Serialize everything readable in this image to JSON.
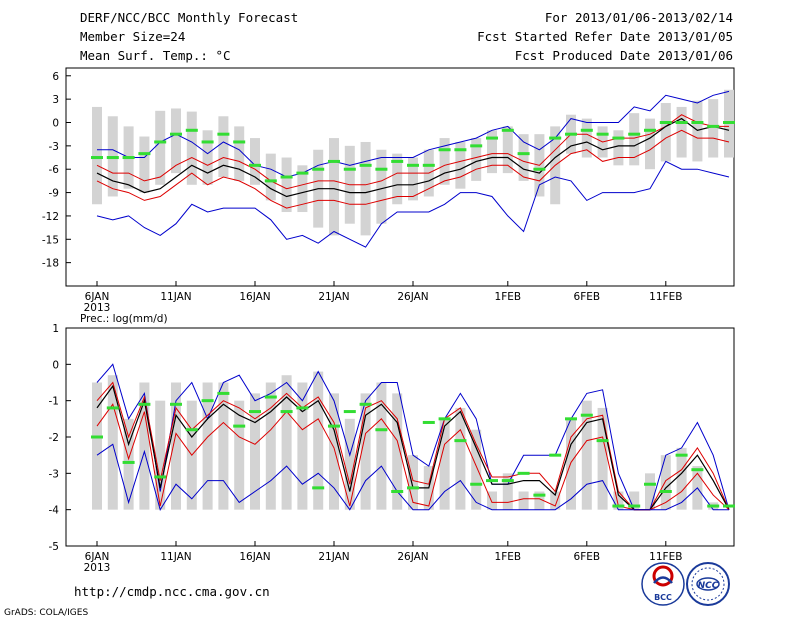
{
  "header": {
    "title": "DERF/NCC/BCC Monthly Forecast",
    "member": "Member Size=24",
    "variable": "Mean Surf. Temp.: °C",
    "period": "For 2013/01/06-2013/02/14",
    "started": "Fcst Started Refer Date 2013/01/05",
    "produced": "Fcst Produced Date 2013/01/06"
  },
  "footer": {
    "url": "http://cmdp.ncc.cma.gov.cn",
    "grads": "GrADS: COLA/IGES",
    "logo1_text": "BCC",
    "logo2_text": "NCC"
  },
  "colors": {
    "box": "#d3d3d3",
    "obs": "#33dd33",
    "ens_bound": "#0000cc",
    "pct": "#dd0000",
    "mean": "#000000"
  },
  "chart_data": [
    {
      "type": "line",
      "name": "temperature",
      "title": "Mean Surf. Temp.: °C",
      "ylim": [
        -21,
        7
      ],
      "yticks": [
        -18,
        -15,
        -12,
        -9,
        -6,
        -3,
        0,
        3,
        6
      ],
      "xtick_labels": [
        "6JAN\n2013",
        "11JAN",
        "16JAN",
        "21JAN",
        "26JAN",
        "1FEB",
        "6FEB",
        "11FEB"
      ],
      "xtick_days": [
        0,
        5,
        10,
        15,
        20,
        26,
        31,
        36
      ],
      "days": 40,
      "box_top": [
        2,
        0.8,
        -0.5,
        -1.8,
        1.5,
        1.8,
        1.4,
        -1,
        0.8,
        -0.5,
        -2,
        -4,
        -4.5,
        -5.5,
        -3.5,
        -2,
        -3,
        -2.5,
        -3.5,
        -4,
        -4.5,
        -3.5,
        -2,
        -2.5,
        -2,
        -1,
        -0.5,
        -1.5,
        -1.5,
        -0.5,
        1,
        0.5,
        -0.5,
        -1,
        1.2,
        0.5,
        2.5,
        2,
        2.8,
        3,
        4.2
      ],
      "box_bottom": [
        -10.5,
        -9.5,
        -8.5,
        -9,
        -8,
        -6.5,
        -8,
        -8,
        -7,
        -7.5,
        -8,
        -10,
        -11.5,
        -11.5,
        -13.5,
        -14.5,
        -13,
        -14.5,
        -13,
        -10.5,
        -10,
        -9.5,
        -8,
        -8.5,
        -7.5,
        -6.5,
        -6.5,
        -7.5,
        -9.5,
        -10.5,
        -4,
        -4.5,
        -4.5,
        -5.5,
        -5.5,
        -6,
        -5,
        -4.5,
        -5,
        -4.5,
        -4.5
      ],
      "series": [
        {
          "name": "ensemble_max",
          "color": "#0000cc",
          "values": [
            -3.5,
            -3.5,
            -4.5,
            -4.5,
            -2.5,
            -1.5,
            -2.5,
            -4,
            -2.5,
            -3.5,
            -5.5,
            -6,
            -7,
            -6.5,
            -5.5,
            -5,
            -5.5,
            -5,
            -4.5,
            -4.5,
            -4.5,
            -3.5,
            -3,
            -2.5,
            -2,
            -1,
            -0.5,
            -2.5,
            -3.5,
            -2,
            0.5,
            0,
            0,
            0,
            2,
            1.5,
            3.5,
            3,
            2.5,
            3.5,
            4
          ]
        },
        {
          "name": "pct_upper",
          "color": "#dd0000",
          "values": [
            -5.5,
            -6.5,
            -6.5,
            -7.5,
            -7,
            -5.5,
            -4.5,
            -5.5,
            -4.5,
            -5,
            -6,
            -7.5,
            -8.5,
            -8,
            -7.5,
            -7.5,
            -8,
            -8,
            -7.5,
            -6.5,
            -6.5,
            -6.5,
            -5.5,
            -5,
            -4.5,
            -4,
            -4,
            -5,
            -5.5,
            -3.5,
            -1.5,
            -1.5,
            -2.5,
            -2,
            -2,
            -1.5,
            -0.5,
            1,
            0,
            -0.5,
            -0.5
          ]
        },
        {
          "name": "mean",
          "color": "#000000",
          "values": [
            -6.5,
            -7.5,
            -8,
            -9,
            -8.5,
            -7,
            -5.5,
            -6.5,
            -5.5,
            -6,
            -7,
            -8.5,
            -9.5,
            -9,
            -8.5,
            -8.5,
            -9,
            -9,
            -8.5,
            -8,
            -8,
            -7.5,
            -6.5,
            -6,
            -5,
            -4.5,
            -4.5,
            -6,
            -6.5,
            -4.5,
            -3,
            -2.5,
            -3.5,
            -3,
            -3,
            -2,
            -0.5,
            0.5,
            -1,
            -0.5,
            -1
          ]
        },
        {
          "name": "pct_lower",
          "color": "#dd0000",
          "values": [
            -7.5,
            -8.5,
            -9,
            -10,
            -9.5,
            -8,
            -6.5,
            -8,
            -7,
            -7.5,
            -8.5,
            -10,
            -11,
            -10.5,
            -10,
            -10,
            -10.5,
            -10.5,
            -10,
            -9.5,
            -9.5,
            -8.5,
            -7.5,
            -7,
            -6,
            -5.5,
            -5.5,
            -7,
            -7.5,
            -5.5,
            -4,
            -3.5,
            -5,
            -4.5,
            -4.5,
            -3.5,
            -2,
            -1,
            -2,
            -2,
            -2.5
          ]
        },
        {
          "name": "ensemble_min",
          "color": "#0000cc",
          "values": [
            -12,
            -12.5,
            -12,
            -13.5,
            -14.5,
            -13,
            -10.5,
            -11.5,
            -11,
            -11,
            -11,
            -12.5,
            -15,
            -14.5,
            -15.5,
            -14,
            -15,
            -16,
            -13,
            -11.5,
            -11.5,
            -11.5,
            -10.5,
            -9,
            -9,
            -9.5,
            -12,
            -14,
            -8,
            -7,
            -7.5,
            -10,
            -9,
            -9,
            -9,
            -8.5,
            -5,
            -6,
            -6,
            -6.5,
            -7
          ]
        }
      ],
      "observed": [
        -4.5,
        -4.5,
        -4.5,
        -4,
        -2.5,
        -1.5,
        -1,
        -2.5,
        -1.5,
        -2.5,
        -5.5,
        -7.5,
        -7,
        -6.5,
        -6,
        -5,
        -6,
        -5.5,
        -6,
        -5,
        -5.5,
        -5.5,
        -3.5,
        -3.5,
        -3,
        -2,
        -1,
        -4,
        -6,
        -2,
        -1.5,
        -1,
        -1.5,
        -2,
        -1.5,
        -1,
        0,
        0,
        0,
        -0.5,
        0
      ]
    },
    {
      "type": "line",
      "name": "precipitation",
      "title": "Prec.: log(mm/d)",
      "ylim": [
        -5,
        1
      ],
      "yticks": [
        -5,
        -4,
        -3,
        -2,
        -1,
        0,
        1
      ],
      "xtick_labels": [
        "6JAN\n2013",
        "11JAN",
        "16JAN",
        "21JAN",
        "26JAN",
        "1FEB",
        "6FEB",
        "11FEB"
      ],
      "xtick_days": [
        0,
        5,
        10,
        15,
        20,
        26,
        31,
        36
      ],
      "days": 40,
      "box_top": [
        -0.5,
        -0.3,
        -1.5,
        -0.5,
        -1,
        -0.5,
        -1,
        -0.5,
        -0.5,
        -1,
        -0.8,
        -0.5,
        -0.3,
        -0.5,
        -0.2,
        -0.8,
        -1.5,
        -0.8,
        -0.5,
        -0.8,
        -2.5,
        -2.8,
        -1.5,
        -1.2,
        -1.8,
        -3.5,
        -3,
        -3.5,
        -3.5,
        -3.5,
        -1.5,
        -1,
        -1.2,
        -3.5,
        -3.5,
        -3,
        -2.5,
        -2.3,
        -2.8,
        -3.8,
        -4
      ],
      "box_bottom": [
        -4,
        -4,
        -4,
        -4,
        -4,
        -4,
        -4,
        -4,
        -4,
        -4,
        -4,
        -4,
        -4,
        -4,
        -4,
        -4,
        -4,
        -4,
        -4,
        -4,
        -4,
        -4,
        -4,
        -4,
        -4,
        -4,
        -4,
        -4,
        -4,
        -4,
        -4,
        -4,
        -4,
        -4,
        -4,
        -4,
        -4,
        -4,
        -4,
        -4,
        -4
      ],
      "series": [
        {
          "name": "ensemble_max",
          "color": "#0000cc",
          "values": [
            -0.5,
            0,
            -1.5,
            -0.8,
            -3.5,
            -1,
            -0.5,
            -1.5,
            -0.5,
            -0.3,
            -1,
            -0.8,
            -0.5,
            -1,
            -0.2,
            -1,
            -2.5,
            -1,
            -0.5,
            -0.5,
            -2.5,
            -2.8,
            -1.5,
            -0.8,
            -1.5,
            -3.3,
            -3.3,
            -2.5,
            -2.5,
            -2.5,
            -1.5,
            -0.8,
            -0.7,
            -3,
            -4,
            -4,
            -2.5,
            -2.3,
            -1.6,
            -2.5,
            -4
          ]
        },
        {
          "name": "pct_upper",
          "color": "#dd0000",
          "values": [
            -1,
            -0.5,
            -2,
            -0.9,
            -3.2,
            -1.2,
            -1.8,
            -1.4,
            -1,
            -1.2,
            -1.5,
            -1.2,
            -0.8,
            -1.2,
            -0.9,
            -1.6,
            -3.3,
            -1.2,
            -1,
            -1.5,
            -3.2,
            -3.3,
            -1.5,
            -1.2,
            -2.2,
            -3.1,
            -3.1,
            -3,
            -3,
            -3.5,
            -2,
            -1.5,
            -1.4,
            -3.5,
            -4,
            -4,
            -3.2,
            -2.9,
            -2.3,
            -3,
            -4
          ]
        },
        {
          "name": "mean",
          "color": "#000000",
          "values": [
            -1.2,
            -0.6,
            -2.2,
            -1,
            -3.4,
            -1.4,
            -2,
            -1.5,
            -1.1,
            -1.4,
            -1.6,
            -1.3,
            -0.9,
            -1.3,
            -1,
            -1.8,
            -3.5,
            -1.4,
            -1.1,
            -1.6,
            -3.4,
            -3.4,
            -1.7,
            -1.3,
            -2.3,
            -3.3,
            -3.3,
            -3.2,
            -3.2,
            -3.6,
            -2.2,
            -1.6,
            -1.5,
            -3.6,
            -4,
            -4,
            -3.4,
            -3,
            -2.5,
            -3.2,
            -4
          ]
        },
        {
          "name": "pct_lower",
          "color": "#dd0000",
          "values": [
            -1.7,
            -1.1,
            -2.6,
            -1.3,
            -3.9,
            -1.9,
            -2.5,
            -2,
            -1.6,
            -2,
            -2.2,
            -1.8,
            -1.3,
            -1.8,
            -1.5,
            -2.3,
            -3.9,
            -1.9,
            -1.5,
            -2.1,
            -3.8,
            -3.9,
            -2.2,
            -1.8,
            -2.8,
            -3.8,
            -3.8,
            -3.7,
            -3.7,
            -3.9,
            -2.7,
            -2.1,
            -2,
            -3.9,
            -4,
            -4,
            -3.8,
            -3.5,
            -3,
            -3.6,
            -4
          ]
        },
        {
          "name": "ensemble_min",
          "color": "#0000cc",
          "values": [
            -2.5,
            -2.2,
            -3.8,
            -2.4,
            -4,
            -3.3,
            -3.7,
            -3.2,
            -3.2,
            -3.8,
            -3.5,
            -3.2,
            -2.8,
            -3.3,
            -3,
            -3.4,
            -4,
            -3.2,
            -2.8,
            -3.5,
            -4,
            -4,
            -3.5,
            -3.2,
            -3.8,
            -4,
            -4,
            -4,
            -4,
            -4,
            -3.7,
            -3.3,
            -3.2,
            -4,
            -4,
            -4,
            -4,
            -3.8,
            -3.4,
            -4,
            -4
          ]
        }
      ],
      "observed": [
        -2,
        -1.2,
        -2.7,
        -1.1,
        -3.1,
        -1.1,
        -1.8,
        -1,
        -0.8,
        -1.7,
        -1.3,
        -0.9,
        -1.3,
        -1.2,
        -3.4,
        -1.7,
        -1.3,
        -1.1,
        -1.8,
        -3.5,
        -3.4,
        -1.6,
        -1.5,
        -2.1,
        -3.3,
        -3.2,
        -3.2,
        -3,
        -3.6,
        -2.5,
        -1.5,
        -1.4,
        -2.1,
        -3.9,
        -3.9,
        -3.3,
        -3.5,
        -2.5,
        -2.9,
        -3.9,
        -3.9
      ]
    }
  ]
}
